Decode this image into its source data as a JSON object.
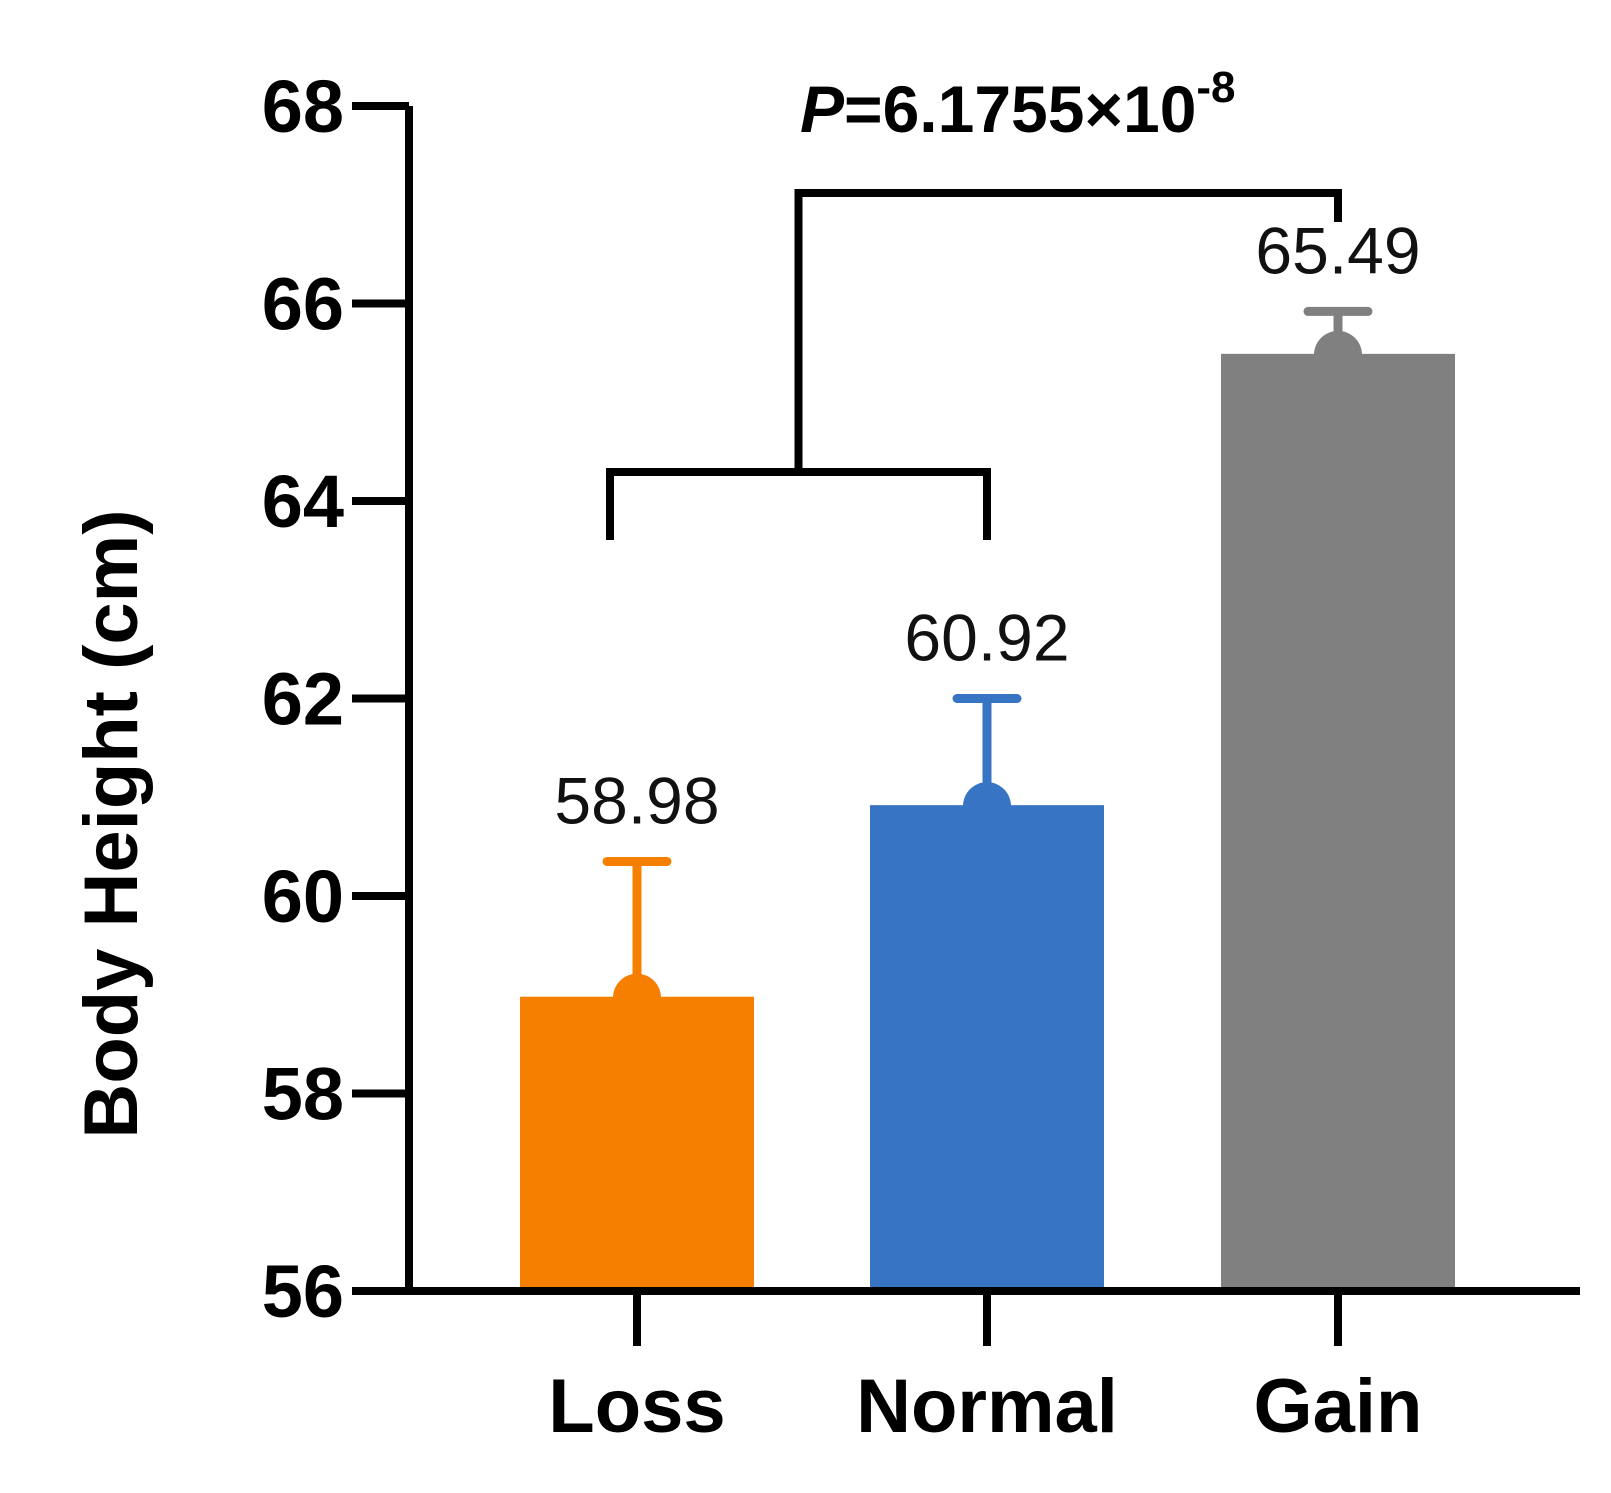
{
  "chart_data": {
    "type": "bar",
    "categories": [
      "Loss",
      "Normal",
      "Gain"
    ],
    "values": [
      58.98,
      60.92,
      65.49
    ],
    "value_labels": [
      "58.98",
      "60.92",
      "65.49"
    ],
    "error_upper": [
      60.35,
      62.0,
      65.92
    ],
    "colors": [
      "#F77F00",
      "#3874C4",
      "#808080"
    ],
    "ylabel": "Body Height (cm)",
    "xlabel": "",
    "ylim": [
      56,
      68
    ],
    "yticks": [
      "56",
      "58",
      "60",
      "62",
      "64",
      "66",
      "68"
    ],
    "annotation": {
      "p_prefix": "P",
      "p_value_text": "=6.1755×10",
      "p_exponent": "-8",
      "compare_left": [
        "Loss",
        "Normal"
      ],
      "compare_right": "Gain"
    },
    "grid": false
  }
}
